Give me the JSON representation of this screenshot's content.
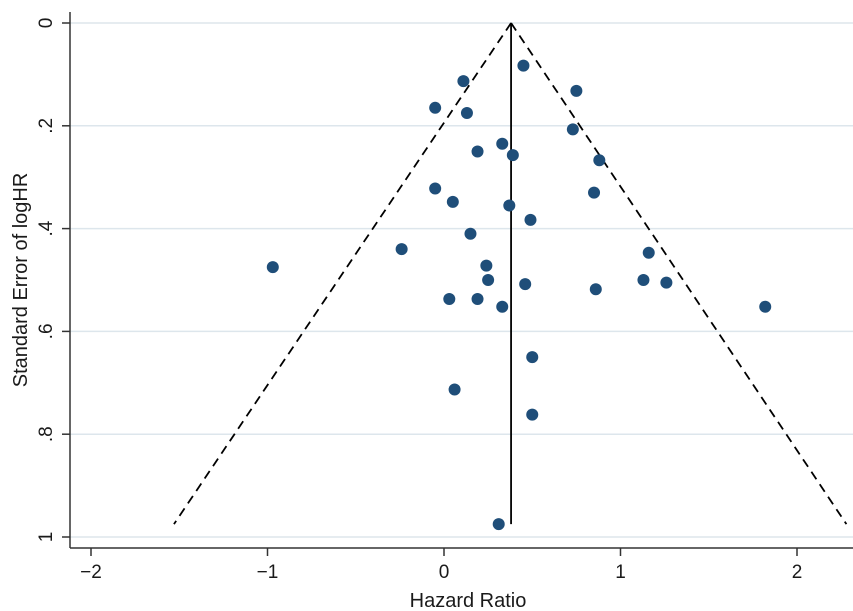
{
  "chart_data": {
    "type": "scatter",
    "title": "",
    "xlabel": "Hazard Ratio",
    "ylabel": "Standard Error of logHR",
    "xlim": [
      -2.3,
      2.3
    ],
    "ylim": [
      0,
      1.0
    ],
    "y_reversed": true,
    "grid": "horizontal",
    "legend": "none",
    "x_ticks": [
      -2,
      -1,
      0,
      1,
      2
    ],
    "x_tick_labels": [
      "−2",
      "−1",
      "0",
      "1",
      "2"
    ],
    "y_ticks": [
      0,
      0.2,
      0.4,
      0.6,
      0.8,
      1
    ],
    "y_tick_labels": [
      "0",
      ".2",
      ".4",
      ".6",
      ".8",
      "1"
    ],
    "pooled_estimate": 0.38,
    "funnel_lines": {
      "apex": [
        0.38,
        0
      ],
      "left_end": [
        -1.53,
        0.975
      ],
      "right_end": [
        2.28,
        0.975
      ]
    },
    "points": [
      {
        "x": 0.45,
        "y": 0.083
      },
      {
        "x": 0.11,
        "y": 0.113
      },
      {
        "x": 0.75,
        "y": 0.132
      },
      {
        "x": -0.05,
        "y": 0.165
      },
      {
        "x": 0.13,
        "y": 0.175
      },
      {
        "x": 0.73,
        "y": 0.207
      },
      {
        "x": 0.33,
        "y": 0.235
      },
      {
        "x": 0.19,
        "y": 0.25
      },
      {
        "x": 0.39,
        "y": 0.257
      },
      {
        "x": 0.88,
        "y": 0.267
      },
      {
        "x": -0.05,
        "y": 0.322
      },
      {
        "x": 0.85,
        "y": 0.33
      },
      {
        "x": 0.05,
        "y": 0.348
      },
      {
        "x": 0.37,
        "y": 0.355
      },
      {
        "x": 0.49,
        "y": 0.383
      },
      {
        "x": 0.15,
        "y": 0.41
      },
      {
        "x": -0.24,
        "y": 0.44
      },
      {
        "x": 1.16,
        "y": 0.447
      },
      {
        "x": -0.97,
        "y": 0.475
      },
      {
        "x": 0.24,
        "y": 0.472
      },
      {
        "x": 0.25,
        "y": 0.5
      },
      {
        "x": 1.13,
        "y": 0.5
      },
      {
        "x": 1.26,
        "y": 0.505
      },
      {
        "x": 0.46,
        "y": 0.508
      },
      {
        "x": 0.86,
        "y": 0.518
      },
      {
        "x": 0.03,
        "y": 0.537
      },
      {
        "x": 0.19,
        "y": 0.537
      },
      {
        "x": 0.33,
        "y": 0.552
      },
      {
        "x": 1.82,
        "y": 0.552
      },
      {
        "x": 0.5,
        "y": 0.65
      },
      {
        "x": 0.06,
        "y": 0.713
      },
      {
        "x": 0.5,
        "y": 0.762
      },
      {
        "x": 0.31,
        "y": 0.975
      }
    ],
    "colors": {
      "points": "#1f4e79",
      "lines": "#000000",
      "grid": "#dde6ec",
      "axis": "#333333"
    }
  }
}
